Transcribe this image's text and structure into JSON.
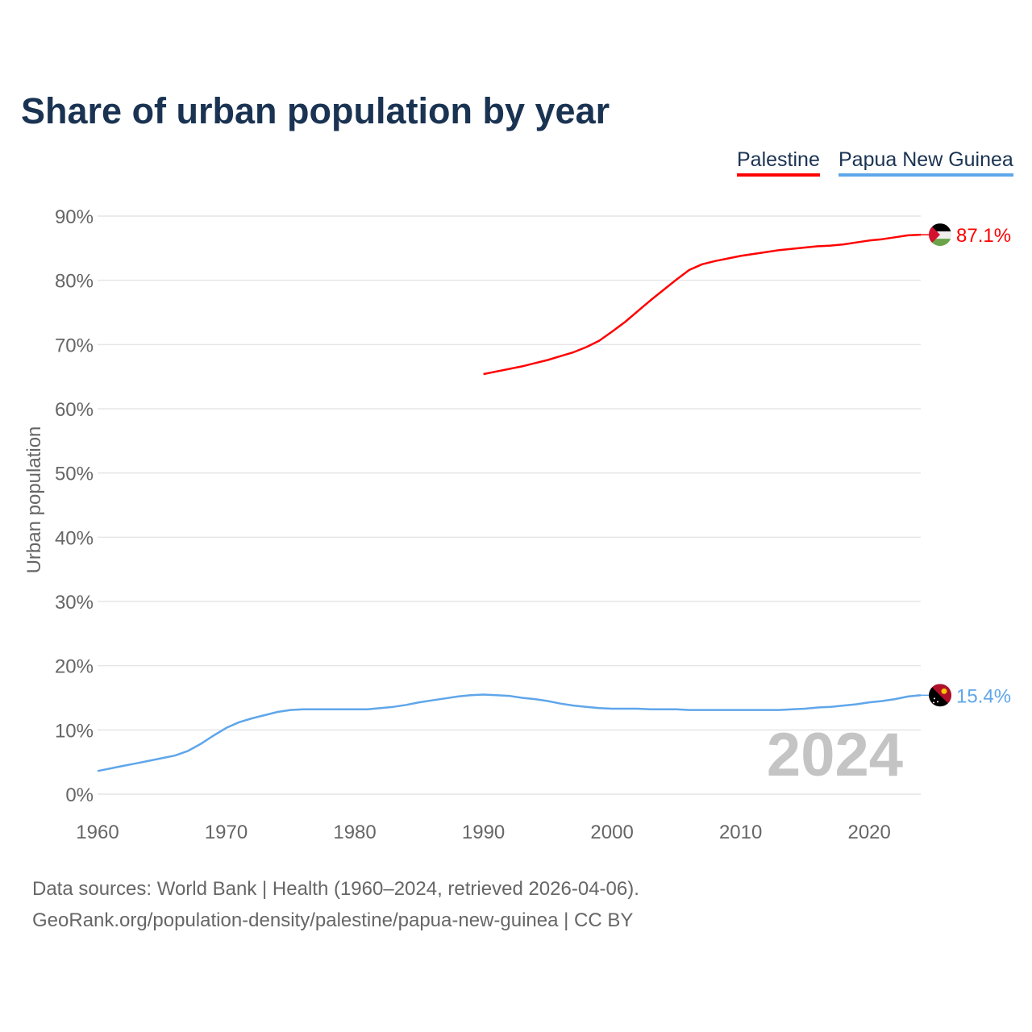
{
  "chart_data": {
    "type": "line",
    "title": "Share of urban population by year",
    "ylabel": "Urban population",
    "xlabel": "",
    "xlim": [
      1960,
      2024
    ],
    "ylim": [
      0,
      90
    ],
    "x_ticks": [
      "1960",
      "1970",
      "1980",
      "1990",
      "2000",
      "2010",
      "2020"
    ],
    "y_ticks": [
      "0%",
      "10%",
      "20%",
      "30%",
      "40%",
      "50%",
      "60%",
      "70%",
      "80%",
      "90%"
    ],
    "grid": true,
    "legend_position": "top-right",
    "year_watermark": "2024",
    "series": [
      {
        "name": "Palestine",
        "color": "#ff0000",
        "end_label": "87.1%",
        "flag": "palestine-flag-icon",
        "start_year": 1990,
        "values": [
          65.4,
          65.8,
          66.2,
          66.6,
          67.1,
          67.6,
          68.2,
          68.8,
          69.6,
          70.6,
          72.0,
          73.5,
          75.2,
          76.9,
          78.5,
          80.1,
          81.6,
          82.5,
          83.0,
          83.4,
          83.8,
          84.1,
          84.4,
          84.7,
          84.9,
          85.1,
          85.3,
          85.4,
          85.6,
          85.9,
          86.2,
          86.4,
          86.7,
          87.0,
          87.1
        ]
      },
      {
        "name": "Papua New Guinea",
        "color": "#5fa6ea",
        "end_label": "15.4%",
        "flag": "papua-new-guinea-flag-icon",
        "start_year": 1960,
        "values": [
          3.6,
          4.0,
          4.4,
          4.8,
          5.2,
          5.6,
          6.0,
          6.7,
          7.8,
          9.1,
          10.3,
          11.2,
          11.8,
          12.3,
          12.8,
          13.1,
          13.2,
          13.2,
          13.2,
          13.2,
          13.2,
          13.2,
          13.4,
          13.6,
          13.9,
          14.3,
          14.6,
          14.9,
          15.2,
          15.4,
          15.5,
          15.4,
          15.3,
          15.0,
          14.8,
          14.5,
          14.1,
          13.8,
          13.6,
          13.4,
          13.3,
          13.3,
          13.3,
          13.2,
          13.2,
          13.2,
          13.1,
          13.1,
          13.1,
          13.1,
          13.1,
          13.1,
          13.1,
          13.1,
          13.2,
          13.3,
          13.5,
          13.6,
          13.8,
          14.0,
          14.3,
          14.5,
          14.8,
          15.2,
          15.4
        ]
      }
    ]
  },
  "footer": {
    "line1": "Data sources: World Bank | Health (1960–2024, retrieved 2026-04-06).",
    "line2": "GeoRank.org/population-density/palestine/papua-new-guinea | CC BY"
  }
}
